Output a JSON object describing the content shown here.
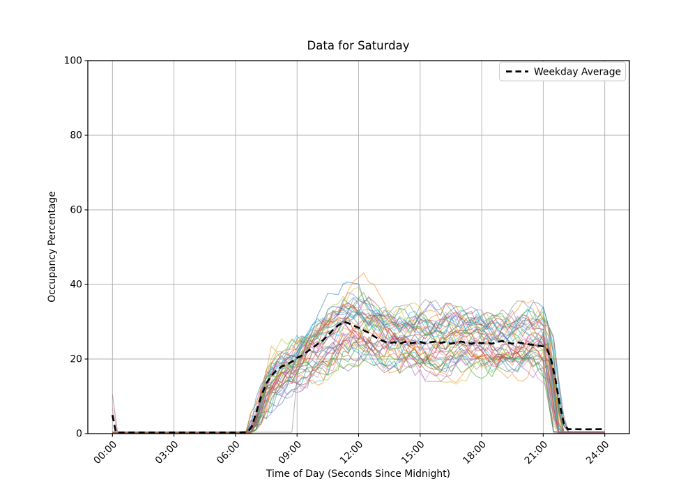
{
  "chart_data": {
    "type": "line",
    "title": "Data for Saturday",
    "xlabel": "Time of Day (Seconds Since Midnight)",
    "ylabel": "Occupancy Percentage",
    "xlim_hours": [
      -1.2,
      25.2
    ],
    "ylim": [
      0,
      100
    ],
    "grid": true,
    "x_ticks": [
      {
        "hour": 0,
        "label": "00:00"
      },
      {
        "hour": 3,
        "label": "03:00"
      },
      {
        "hour": 6,
        "label": "06:00"
      },
      {
        "hour": 9,
        "label": "09:00"
      },
      {
        "hour": 12,
        "label": "12:00"
      },
      {
        "hour": 15,
        "label": "15:00"
      },
      {
        "hour": 18,
        "label": "18:00"
      },
      {
        "hour": 21,
        "label": "21:00"
      },
      {
        "hour": 24,
        "label": "24:00"
      }
    ],
    "y_ticks": [
      0,
      20,
      40,
      60,
      80,
      100
    ],
    "legend": {
      "label": "Weekday Average",
      "position": "upper right",
      "sample_color": "#000000",
      "sample_style": "dashed"
    },
    "average_series": {
      "name": "Weekday Average",
      "color": "#000000",
      "style": "dashed",
      "line_width": 2.7,
      "points": [
        [
          0,
          5
        ],
        [
          0.17,
          0.3
        ],
        [
          1,
          0.3
        ],
        [
          2,
          0.3
        ],
        [
          3,
          0.3
        ],
        [
          4,
          0.3
        ],
        [
          5,
          0.3
        ],
        [
          6,
          0.3
        ],
        [
          6.6,
          0.4
        ],
        [
          6.8,
          2
        ],
        [
          7,
          5.5
        ],
        [
          7.25,
          10
        ],
        [
          7.5,
          13.5
        ],
        [
          7.75,
          15.5
        ],
        [
          8,
          17
        ],
        [
          8.25,
          18
        ],
        [
          8.5,
          18.5
        ],
        [
          8.75,
          19.3
        ],
        [
          9,
          20.3
        ],
        [
          9.25,
          21
        ],
        [
          9.5,
          22
        ],
        [
          9.75,
          23
        ],
        [
          10,
          24
        ],
        [
          10.25,
          25
        ],
        [
          10.5,
          26.3
        ],
        [
          10.75,
          27.8
        ],
        [
          11,
          29
        ],
        [
          11.3,
          30
        ],
        [
          11.5,
          29.6
        ],
        [
          11.75,
          29
        ],
        [
          12,
          28.4
        ],
        [
          12.25,
          27.7
        ],
        [
          12.5,
          27
        ],
        [
          12.75,
          26.1
        ],
        [
          13,
          25.3
        ],
        [
          13.25,
          24.7
        ],
        [
          13.5,
          24.3
        ],
        [
          13.75,
          24.5
        ],
        [
          14,
          24.1
        ],
        [
          14.25,
          24.6
        ],
        [
          14.5,
          24.2
        ],
        [
          14.75,
          24.4
        ],
        [
          15,
          24.6
        ],
        [
          15.25,
          24.2
        ],
        [
          15.5,
          24.5
        ],
        [
          15.75,
          24.7
        ],
        [
          16,
          24.3
        ],
        [
          16.25,
          24.6
        ],
        [
          16.5,
          24.1
        ],
        [
          16.75,
          24.4
        ],
        [
          17,
          24.7
        ],
        [
          17.25,
          24.3
        ],
        [
          17.5,
          24.1
        ],
        [
          17.75,
          24.5
        ],
        [
          18,
          24.2
        ],
        [
          18.25,
          24.4
        ],
        [
          18.5,
          24.1
        ],
        [
          18.75,
          24.6
        ],
        [
          19,
          24.8
        ],
        [
          19.25,
          24.4
        ],
        [
          19.5,
          24.1
        ],
        [
          19.75,
          24.5
        ],
        [
          20,
          24.2
        ],
        [
          20.25,
          24.0
        ],
        [
          20.5,
          23.8
        ],
        [
          20.75,
          23.6
        ],
        [
          21,
          23.4
        ],
        [
          21.2,
          22.5
        ],
        [
          21.4,
          19.5
        ],
        [
          21.6,
          14.5
        ],
        [
          21.8,
          8
        ],
        [
          22,
          2.8
        ],
        [
          22.2,
          1.2
        ],
        [
          23,
          1.15
        ],
        [
          24,
          1.2
        ]
      ]
    },
    "individual_traces": {
      "count": 45,
      "alpha": 0.5,
      "line_width": 1.2,
      "seed": 11,
      "palette": [
        "#1f77b4",
        "#ff7f0e",
        "#2ca02c",
        "#d62728",
        "#9467bd",
        "#8c564b",
        "#e377c2",
        "#7f7f7f",
        "#bcbd22",
        "#17becf"
      ],
      "step_hours": 0.25,
      "active_start_hour": 6.55,
      "drop_start_hour": 21.0,
      "baseline_before": 0.3,
      "baseline_after": 0.4,
      "midnight_spikes": [
        {
          "trace_index": 5,
          "value": 10.5
        },
        {
          "trace_index": 6,
          "value": 7.0
        }
      ],
      "late_start": {
        "trace_index": 37,
        "hour": 8.85
      },
      "envelope": {
        "hours": [
          6.5,
          7,
          7.5,
          8,
          8.5,
          9,
          9.5,
          10,
          10.5,
          11,
          11.5,
          12,
          12.5,
          13,
          13.5,
          14,
          15,
          16,
          17,
          18,
          19,
          20,
          20.5,
          21,
          21.3
        ],
        "min": [
          0.3,
          1,
          4,
          7,
          9,
          11,
          12,
          13,
          14,
          15,
          15,
          15,
          14.5,
          14,
          13.5,
          13,
          14,
          14,
          13,
          13,
          14,
          14,
          13.5,
          11,
          8
        ],
        "max": [
          2,
          10,
          20,
          27,
          31,
          33,
          34.5,
          36,
          41,
          45,
          48,
          50,
          47,
          45,
          42,
          40,
          40,
          41,
          43,
          45,
          40,
          38,
          36,
          34,
          28
        ]
      }
    },
    "colors": {
      "grid": "#b0b0b0",
      "axes": "#000000",
      "background": "#ffffff",
      "text": "#000000"
    }
  }
}
